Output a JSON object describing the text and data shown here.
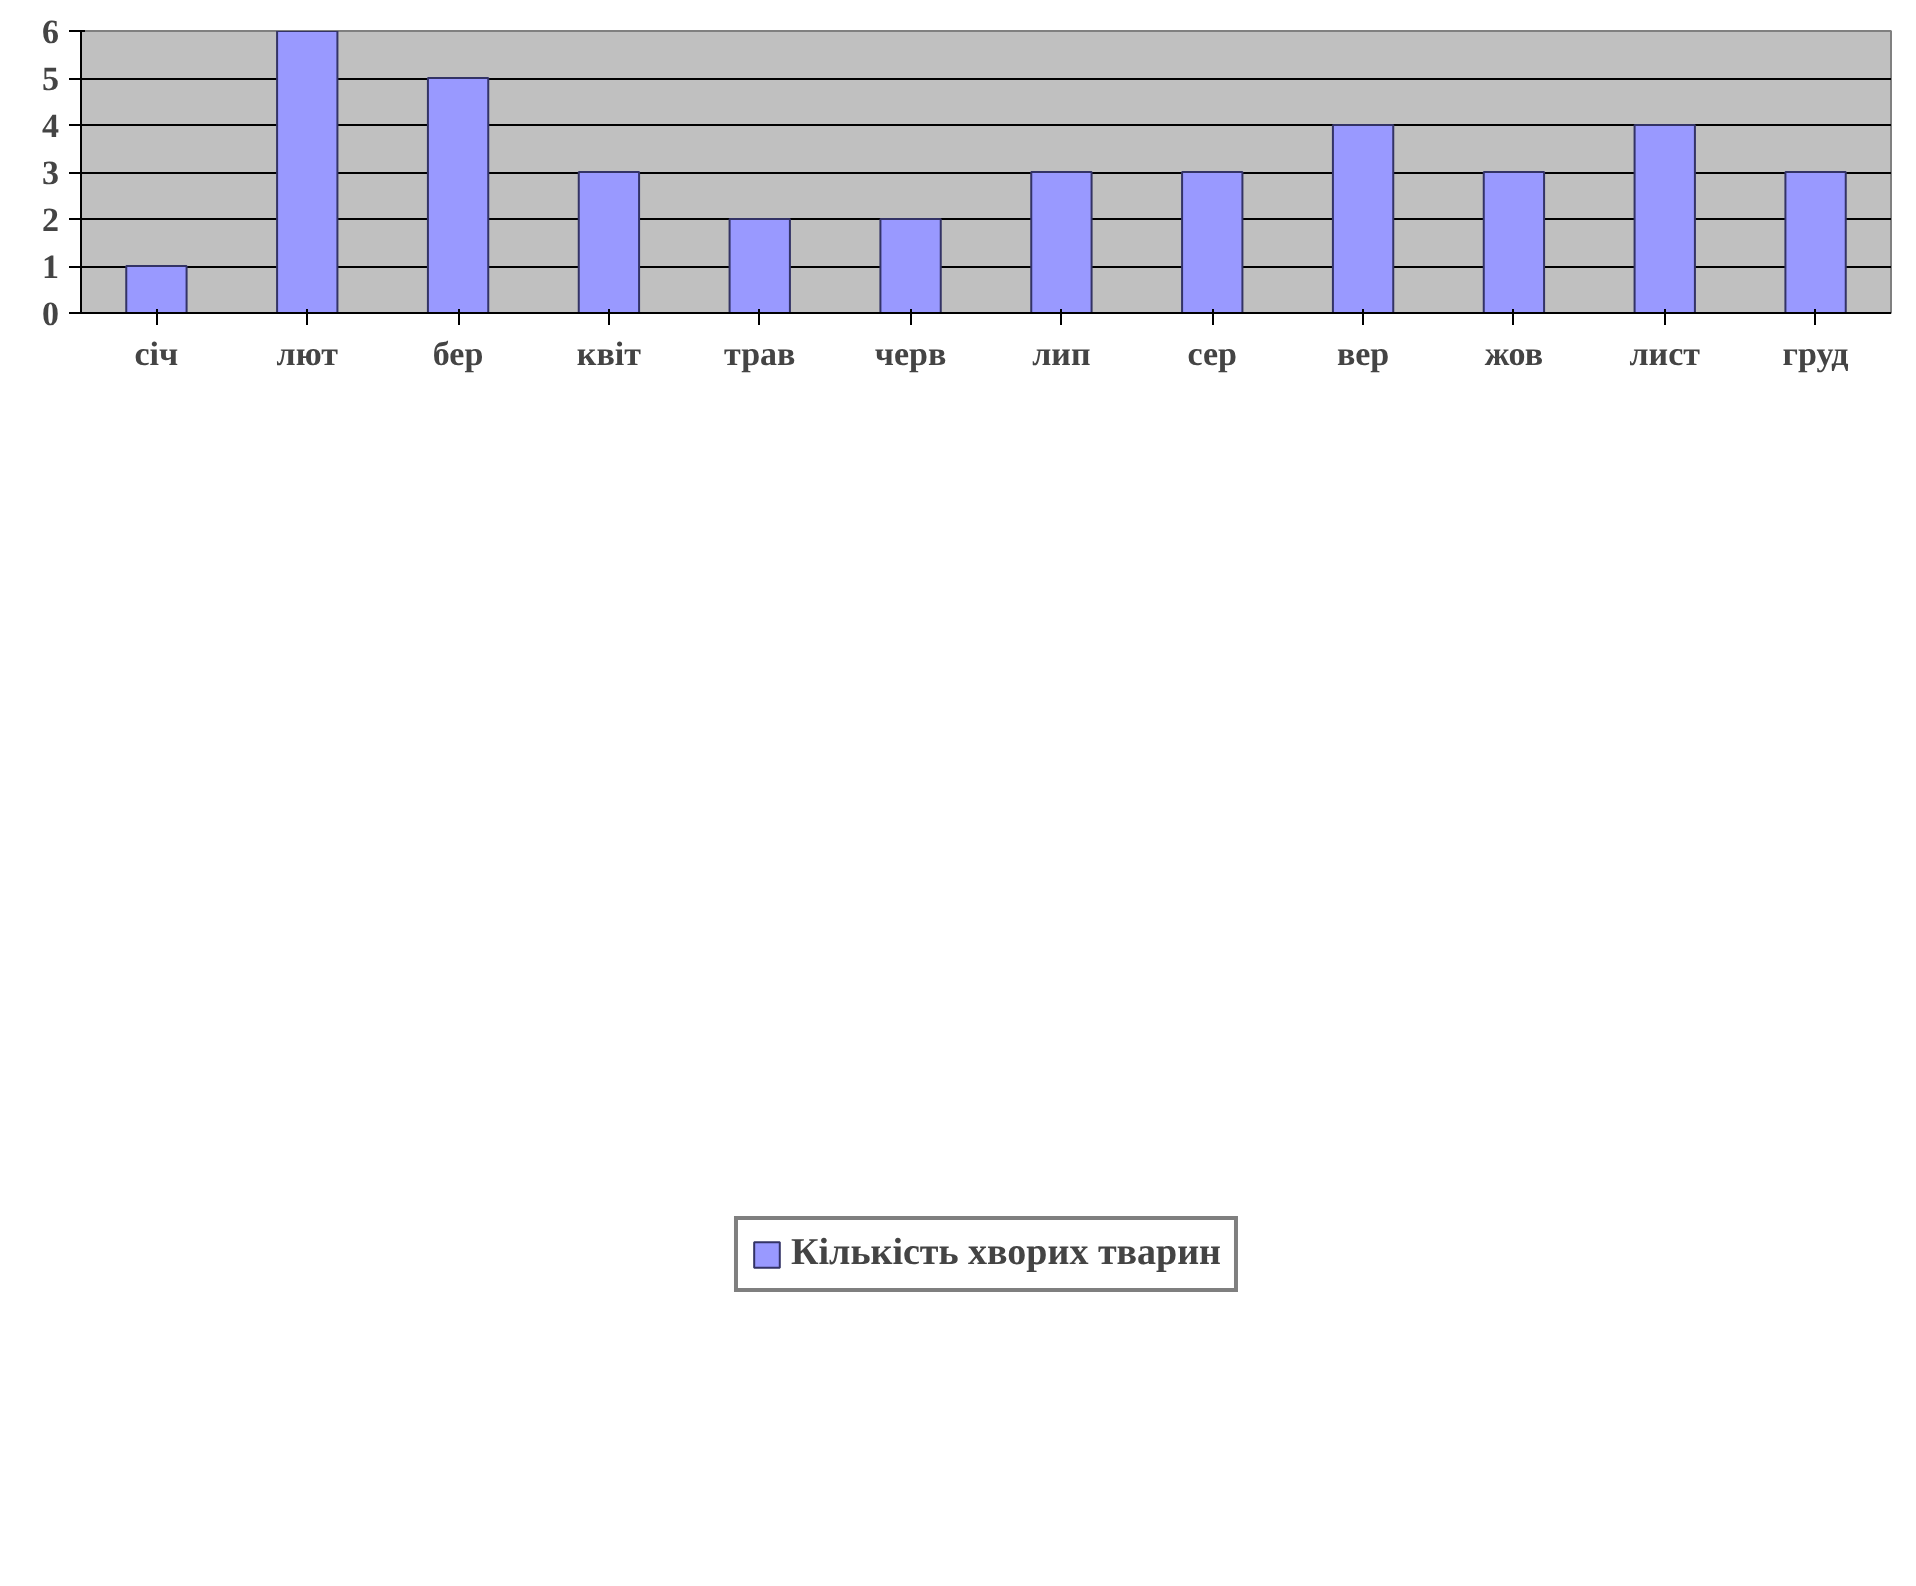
{
  "chart_data": {
    "type": "bar",
    "categories": [
      "січ",
      "лют",
      "бер",
      "квіт",
      "трав",
      "черв",
      "лип",
      "сер",
      "вер",
      "жов",
      "лист",
      "груд"
    ],
    "series": [
      {
        "name": "Кількість хворих тварин",
        "color": "#9999ff",
        "values": [
          1,
          6,
          5,
          3,
          2,
          2,
          3,
          3,
          4,
          3,
          4,
          3
        ]
      }
    ],
    "ylim": [
      0,
      6
    ],
    "yticks": [
      0,
      1,
      2,
      3,
      4,
      5,
      6
    ],
    "grid": "y",
    "legend": "bottom"
  }
}
